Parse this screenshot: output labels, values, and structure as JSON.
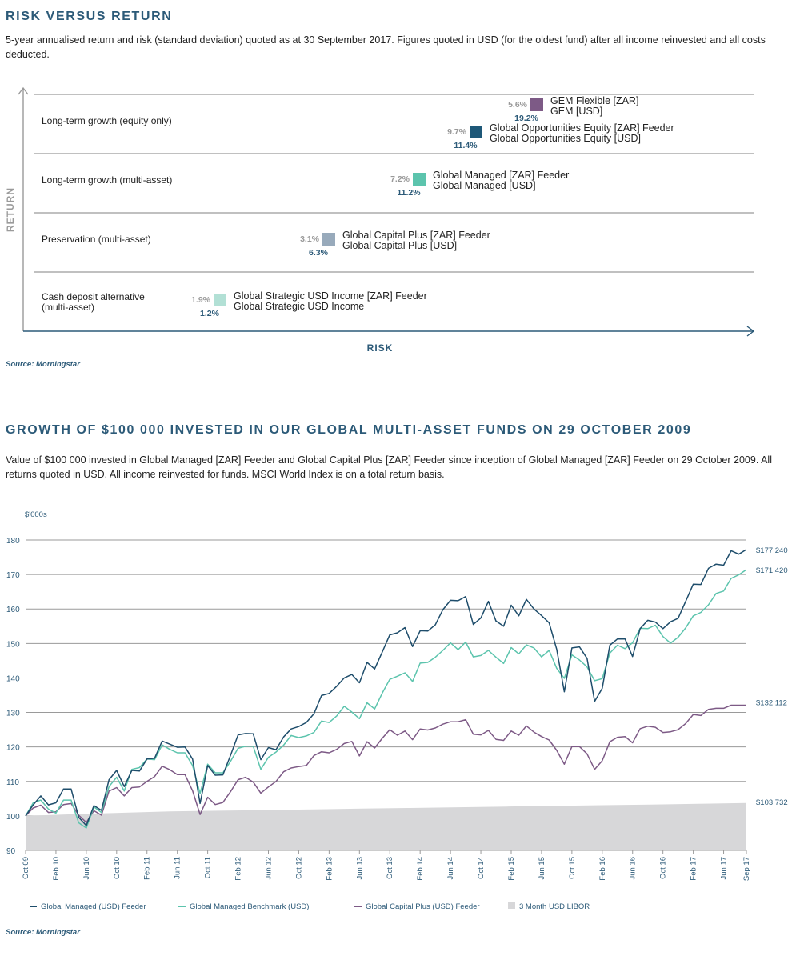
{
  "section1": {
    "title": "RISK VERSUS RETURN",
    "description": "5-year annualised return and risk (standard deviation) quoted as at 30 September 2017. Figures quoted in USD (for the oldest fund) after all income reinvested and all costs deducted.",
    "source": "Source: Morningstar"
  },
  "section2": {
    "title": "GROWTH OF $100 000 INVESTED IN OUR GLOBAL MULTI-ASSET FUNDS ON 29 OCTOBER 2009",
    "description": "Value of $100 000 invested in Global Managed [ZAR] Feeder and Global Capital Plus [ZAR] Feeder since inception of Global Managed [ZAR] Feeder on 29 October 2009. All returns quoted in USD. All income reinvested for funds. MSCI World Index is on a total return basis.",
    "source": "Source: Morningstar"
  },
  "chart_data": [
    {
      "type": "scatter",
      "title": "",
      "xlabel": "RISK",
      "ylabel": "RETURN",
      "bands": [
        "Long-term growth (equity only)",
        "Long-term growth (multi-asset)",
        "Preservation (multi-asset)",
        "Cash deposit alternative (multi-asset)"
      ],
      "points": [
        {
          "band": 0,
          "names": [
            "GEM Flexible [ZAR]",
            "GEM [USD]"
          ],
          "return_label": "5.6%",
          "risk_label": "19.2%",
          "color": "#7d5a86"
        },
        {
          "band": 0,
          "names": [
            "Global Opportunities Equity [ZAR] Feeder",
            "Global Opportunities Equity [USD]"
          ],
          "return_label": "9.7%",
          "risk_label": "11.4%",
          "color": "#1e5878"
        },
        {
          "band": 1,
          "names": [
            "Global Managed [ZAR] Feeder",
            "Global Managed [USD]"
          ],
          "return_label": "7.2%",
          "risk_label": "11.2%",
          "color": "#5cc4ad"
        },
        {
          "band": 2,
          "names": [
            "Global Capital Plus [ZAR] Feeder",
            "Global Capital Plus [USD]"
          ],
          "return_label": "3.1%",
          "risk_label": "6.3%",
          "color": "#98aabb"
        },
        {
          "band": 3,
          "names": [
            "Global Strategic USD Income [ZAR] Feeder",
            "Global Strategic USD Income"
          ],
          "return_label": "1.9%",
          "risk_label": "1.2%",
          "color": "#b2e0d5"
        }
      ]
    },
    {
      "type": "line",
      "title": "",
      "ylabel": "$'000s",
      "ylim": [
        90,
        180
      ],
      "yticks": [
        90,
        100,
        110,
        120,
        130,
        140,
        150,
        160,
        170,
        180
      ],
      "x_tick_labels": [
        "Oct 09",
        "Feb 10",
        "Jun 10",
        "Oct 10",
        "Feb 11",
        "Jun 11",
        "Oct 11",
        "Feb 12",
        "Jun 12",
        "Oct 12",
        "Feb 13",
        "Jun 13",
        "Oct 13",
        "Feb 14",
        "Jun 14",
        "Oct 14",
        "Feb 15",
        "Jun 15",
        "Oct 15",
        "Feb 16",
        "Jun 16",
        "Oct 16",
        "Feb 17",
        "Jun 17",
        "Sep 17"
      ],
      "x_start": "2009-10",
      "x_end": "2017-09",
      "legend": "bottom",
      "series": [
        {
          "name": "Global Managed (USD) Feeder",
          "color": "#1e4d6b",
          "end_label": "$177 240",
          "values": [
            100,
            103.2,
            105.8,
            103.2,
            103.8,
            107.8,
            107.8,
            99.6,
            97.2,
            103,
            101.6,
            110.5,
            113.2,
            108.5,
            113.2,
            113,
            116.5,
            116.7,
            121.7,
            120.8,
            119.9,
            120,
            116.5,
            103.6,
            114.6,
            111.8,
            111.9,
            117.5,
            123.5,
            123.9,
            123.8,
            116.3,
            119.8,
            119.2,
            122.9,
            125.2,
            125.9,
            127.1,
            129.6,
            134.9,
            135.5,
            137.6,
            140,
            141,
            138.6,
            144.5,
            142.6,
            147.5,
            152.5,
            153.1,
            154.6,
            149.1,
            153.7,
            153.6,
            155.4,
            159.8,
            162.5,
            162.4,
            163.6,
            155.5,
            157.4,
            162.2,
            156.5,
            155,
            161.1,
            158,
            162.8,
            160,
            158.1,
            156,
            148.3,
            136,
            148.7,
            149,
            145.7,
            133.2,
            137,
            149.5,
            151.3,
            151.3,
            146.2,
            154.3,
            156.7,
            156.2,
            154.3,
            156.3,
            157.3,
            162.2,
            167.2,
            167.1,
            171.8,
            173,
            172.7,
            176.9,
            175.9,
            177.24
          ]
        },
        {
          "name": "Global Managed Benchmark (USD)",
          "color": "#5cc4ad",
          "end_label": "$171 420",
          "values": [
            100,
            103.8,
            104.6,
            102,
            100.8,
            104.6,
            104.6,
            98,
            96.5,
            102.6,
            101,
            108.5,
            111.2,
            107.2,
            113.5,
            114,
            116.5,
            116.3,
            120.6,
            119.3,
            118.3,
            118.3,
            114.6,
            106.5,
            115,
            112.5,
            112.5,
            115.8,
            119.6,
            120.2,
            120.2,
            113.5,
            117,
            118.5,
            120.5,
            123.3,
            122.7,
            123.2,
            124.2,
            127.5,
            127.1,
            129,
            131.8,
            130.1,
            128.2,
            132.8,
            131,
            135.6,
            139.6,
            140.5,
            141.5,
            139,
            144.3,
            144.5,
            146,
            148,
            150.2,
            148.2,
            150.4,
            146.1,
            146.5,
            148,
            146,
            144.2,
            148.8,
            147,
            149.6,
            148.7,
            146.1,
            148,
            142.8,
            139.9,
            146.7,
            145.2,
            143.2,
            139.2,
            139.8,
            147.2,
            149.5,
            148.5,
            150.2,
            154.4,
            154.3,
            155.3,
            152,
            150.1,
            151.8,
            154.5,
            158,
            159,
            161.2,
            164.5,
            165.2,
            168.9,
            169.9,
            171.42
          ]
        },
        {
          "name": "Global Capital Plus (USD) Feeder",
          "color": "#7d5a86",
          "end_label": "$132 112",
          "values": [
            100,
            102.3,
            103.1,
            101,
            101.2,
            103.3,
            103.6,
            100.2,
            98.1,
            101.5,
            100.2,
            107.2,
            108.2,
            105.8,
            108.2,
            108.4,
            110,
            111.4,
            114.4,
            113.4,
            112,
            112,
            107.3,
            100.4,
            105.4,
            103.3,
            103.9,
            107,
            110.5,
            111.2,
            109.8,
            106.6,
            108.4,
            110,
            112.8,
            113.9,
            114.3,
            114.6,
            117.5,
            118.6,
            118.3,
            119.3,
            121,
            121.6,
            117.4,
            121.5,
            119.7,
            122.5,
            125,
            123.4,
            124.6,
            122.1,
            125.2,
            124.9,
            125.5,
            126.6,
            127.3,
            127.3,
            127.9,
            123.7,
            123.5,
            124.8,
            122.2,
            121.9,
            124.6,
            123.4,
            126.1,
            124.3,
            123,
            122,
            119,
            115,
            120.1,
            120.1,
            118,
            113.5,
            116,
            121.5,
            122.8,
            123,
            121.2,
            125.3,
            126,
            125.7,
            124.2,
            124.4,
            125,
            126.8,
            129.4,
            129.1,
            130.9,
            131.2,
            131.2,
            132.1,
            132.1,
            132.112
          ]
        },
        {
          "name": "3 Month USD LIBOR",
          "color": "#d7d7d9",
          "area": true,
          "end_label": "$103 732",
          "values": [
            100,
            100.5,
            100.9,
            101.3,
            101.5,
            101.7,
            101.9,
            102.1,
            102.3,
            102.5,
            102.7,
            102.9,
            103.1,
            103.3,
            103.5,
            103.732
          ]
        }
      ]
    }
  ]
}
